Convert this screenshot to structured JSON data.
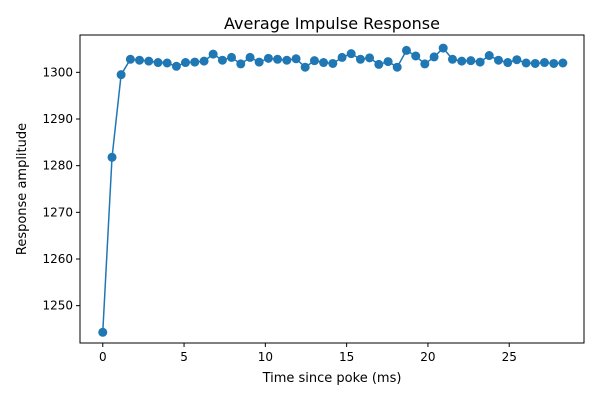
{
  "chart_data": {
    "type": "line",
    "title": "Average Impulse Response",
    "xlabel": "Time since poke (ms)",
    "ylabel": "Response amplitude",
    "xlim": [
      -1.4,
      29.6
    ],
    "ylim": [
      1242.0,
      1308.0
    ],
    "xticks": [
      0,
      5,
      10,
      15,
      20,
      25
    ],
    "yticks": [
      1250,
      1260,
      1270,
      1280,
      1290,
      1300
    ],
    "grid": false,
    "legend": "none",
    "color": "#1f77b4",
    "series": [
      {
        "x": [
          0.0,
          0.57,
          1.13,
          1.7,
          2.26,
          2.83,
          3.4,
          3.96,
          4.53,
          5.09,
          5.66,
          6.23,
          6.79,
          7.36,
          7.92,
          8.49,
          9.06,
          9.62,
          10.19,
          10.75,
          11.32,
          11.89,
          12.45,
          13.02,
          13.58,
          14.15,
          14.72,
          15.28,
          15.85,
          16.41,
          16.98,
          17.55,
          18.11,
          18.68,
          19.25,
          19.81,
          20.38,
          20.94,
          21.51,
          22.08,
          22.64,
          23.21,
          23.77,
          24.34,
          24.91,
          25.47,
          26.04,
          26.6,
          27.17,
          27.74,
          28.3
        ],
        "y": [
          1244.3,
          1281.8,
          1299.5,
          1302.8,
          1302.6,
          1302.4,
          1302.1,
          1302.0,
          1301.3,
          1302.1,
          1302.2,
          1302.4,
          1303.9,
          1302.6,
          1303.2,
          1301.8,
          1303.2,
          1302.2,
          1303.0,
          1302.8,
          1302.6,
          1302.9,
          1301.1,
          1302.5,
          1302.1,
          1301.9,
          1303.2,
          1304.0,
          1302.8,
          1303.1,
          1301.7,
          1302.3,
          1301.1,
          1304.7,
          1303.5,
          1301.8,
          1303.3,
          1305.2,
          1302.8,
          1302.4,
          1302.5,
          1302.2,
          1303.6,
          1302.6,
          1302.1,
          1302.7,
          1302.0,
          1301.9,
          1302.1,
          1301.9,
          1302.0
        ]
      }
    ]
  }
}
